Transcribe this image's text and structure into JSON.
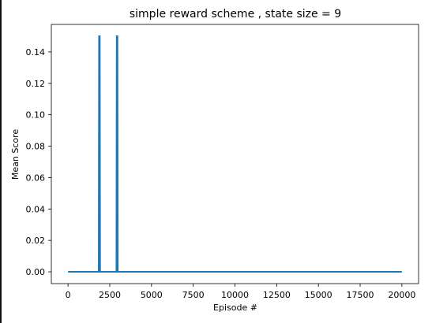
{
  "chart_data": {
    "type": "line",
    "title": "simple reward scheme , state size = 9",
    "xlabel": "Episode #",
    "ylabel": "Mean Score",
    "xlim": [
      -1000,
      21000
    ],
    "ylim": [
      -0.0075,
      0.1575
    ],
    "x_ticks": [
      0,
      2500,
      5000,
      7500,
      10000,
      12500,
      15000,
      17500,
      20000
    ],
    "x_tick_labels": [
      "0",
      "2500",
      "5000",
      "7500",
      "10000",
      "12500",
      "15000",
      "17500",
      "20000"
    ],
    "y_ticks": [
      0.0,
      0.02,
      0.04,
      0.06,
      0.08,
      0.1,
      0.12,
      0.14
    ],
    "y_tick_labels": [
      "0.00",
      "0.02",
      "0.04",
      "0.06",
      "0.08",
      "0.10",
      "0.12",
      "0.14"
    ],
    "grid": false,
    "series": [
      {
        "color": "#1f77b4",
        "points": [
          [
            0,
            0.0
          ],
          [
            1840,
            0.0
          ],
          [
            1860,
            0.15
          ],
          [
            1900,
            0.15
          ],
          [
            1920,
            0.0
          ],
          [
            2900,
            0.0
          ],
          [
            2920,
            0.15
          ],
          [
            2960,
            0.15
          ],
          [
            2980,
            0.0
          ],
          [
            20000,
            0.0
          ]
        ]
      }
    ]
  }
}
